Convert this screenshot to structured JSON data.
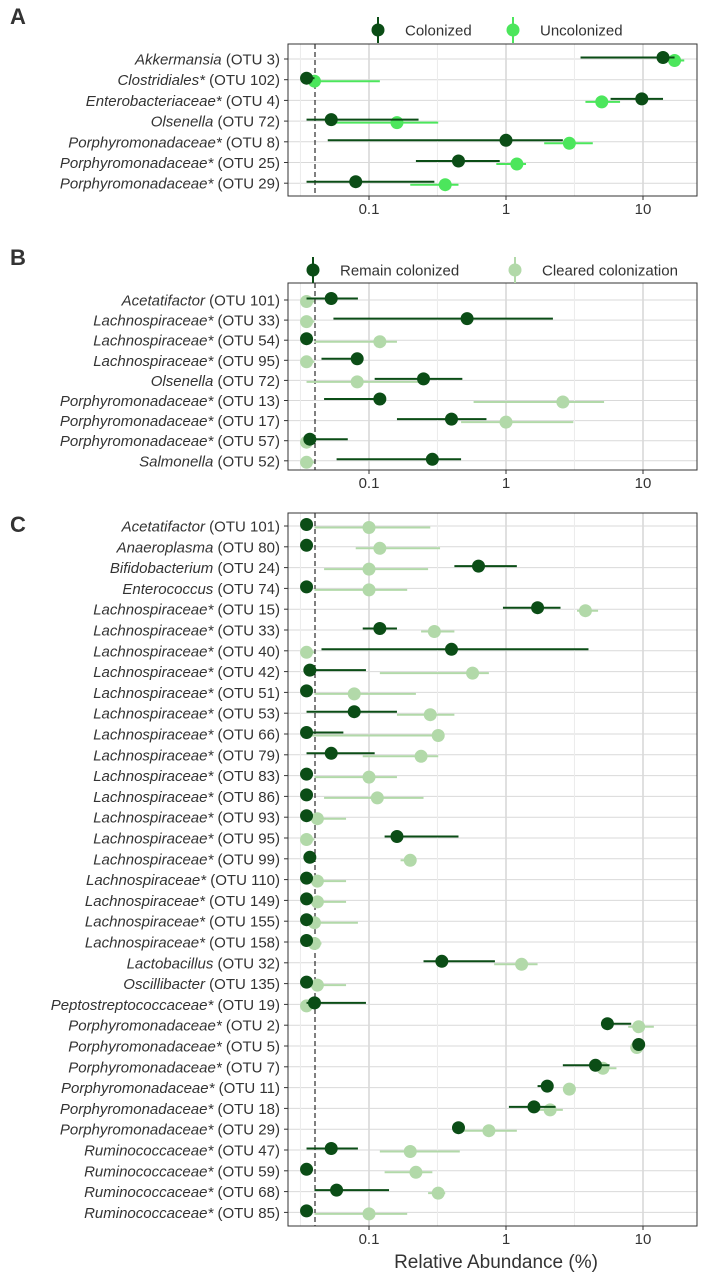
{
  "colors": {
    "dark_green": "#0b4d16",
    "bright_green": "#4ce65c",
    "light_green": "#b2d9a9",
    "grid_major": "#d9d9d9",
    "grid_minor": "#ececec",
    "panel_border": "#333333"
  },
  "x_axis": {
    "label": "Relative Abundance (%)",
    "scale": "log10",
    "ticks": [
      0.1,
      1,
      10
    ],
    "tick_labels": [
      "0.1",
      "1",
      "10"
    ],
    "xlim": [
      0.025,
      25
    ],
    "reference_line": 0.04
  },
  "chart_data": [
    {
      "type": "dot-interval",
      "panel_label": "A",
      "legend": [
        "Colonized",
        "Uncolonized"
      ],
      "legend_colors": [
        "#0b4d16",
        "#4ce65c"
      ],
      "categories": [
        {
          "taxon": "Akkermansia",
          "star": "",
          "otu": "(OTU 3)"
        },
        {
          "taxon": "Clostridiales",
          "star": "*",
          "otu": "(OTU 102)"
        },
        {
          "taxon": "Enterobacteriaceae",
          "star": "*",
          "otu": "(OTU 4)"
        },
        {
          "taxon": "Olsenella",
          "star": "",
          "otu": "(OTU 72)"
        },
        {
          "taxon": "Porphyromonadaceae",
          "star": "*",
          "otu": "(OTU 8)"
        },
        {
          "taxon": "Porphyromonadaceae",
          "star": "*",
          "otu": "(OTU 25)"
        },
        {
          "taxon": "Porphyromonadaceae",
          "star": "*",
          "otu": "(OTU 29)"
        }
      ],
      "series": [
        {
          "name": "Colonized",
          "color": "#0b4d16",
          "values": [
            14,
            0.035,
            9.8,
            0.053,
            1.0,
            0.45,
            0.08
          ],
          "lower": [
            3.5,
            0.035,
            5.8,
            0.035,
            0.05,
            0.22,
            0.035
          ],
          "upper": [
            17,
            0.04,
            14,
            0.23,
            2.6,
            0.9,
            0.3
          ]
        },
        {
          "name": "Uncolonized",
          "color": "#4ce65c",
          "values": [
            17,
            0.04,
            5.0,
            0.16,
            2.9,
            1.2,
            0.36
          ],
          "lower": [
            14,
            0.04,
            3.8,
            0.05,
            1.9,
            0.85,
            0.2
          ],
          "upper": [
            20,
            0.12,
            6.8,
            0.32,
            4.3,
            1.4,
            0.45
          ]
        }
      ]
    },
    {
      "type": "dot-interval",
      "panel_label": "B",
      "legend": [
        "Remain colonized",
        "Cleared colonization"
      ],
      "legend_colors": [
        "#0b4d16",
        "#b2d9a9"
      ],
      "categories": [
        {
          "taxon": "Acetatifactor",
          "star": "",
          "otu": "(OTU 101)"
        },
        {
          "taxon": "Lachnospiraceae",
          "star": "*",
          "otu": "(OTU 33)"
        },
        {
          "taxon": "Lachnospiraceae",
          "star": "*",
          "otu": "(OTU 54)"
        },
        {
          "taxon": "Lachnospiraceae",
          "star": "*",
          "otu": "(OTU 95)"
        },
        {
          "taxon": "Olsenella",
          "star": "",
          "otu": "(OTU 72)"
        },
        {
          "taxon": "Porphyromonadaceae",
          "star": "*",
          "otu": "(OTU 13)"
        },
        {
          "taxon": "Porphyromonadaceae",
          "star": "*",
          "otu": "(OTU 17)"
        },
        {
          "taxon": "Porphyromonadaceae",
          "star": "*",
          "otu": "(OTU 57)"
        },
        {
          "taxon": "Salmonella",
          "star": "",
          "otu": "(OTU 52)"
        }
      ],
      "series": [
        {
          "name": "Remain colonized",
          "color": "#0b4d16",
          "values": [
            0.053,
            0.52,
            0.035,
            0.082,
            0.25,
            0.12,
            0.4,
            0.037,
            0.29
          ],
          "lower": [
            0.035,
            0.055,
            0.035,
            0.045,
            0.11,
            0.047,
            0.16,
            0.035,
            0.058
          ],
          "upper": [
            0.083,
            2.2,
            0.035,
            0.082,
            0.48,
            0.12,
            0.72,
            0.07,
            0.47
          ]
        },
        {
          "name": "Cleared colonization",
          "color": "#b2d9a9",
          "values": [
            0.035,
            0.035,
            0.12,
            0.035,
            0.082,
            2.6,
            1.0,
            0.035,
            0.035
          ],
          "lower": [
            0.035,
            0.035,
            0.04,
            0.035,
            0.035,
            0.58,
            0.47,
            0.035,
            0.035
          ],
          "upper": [
            0.04,
            0.04,
            0.16,
            0.04,
            0.25,
            5.2,
            3.1,
            0.04,
            0.04
          ]
        }
      ]
    },
    {
      "type": "dot-interval",
      "panel_label": "C",
      "legend": [],
      "legend_colors": [],
      "categories": [
        {
          "taxon": "Acetatifactor",
          "star": "",
          "otu": "(OTU 101)"
        },
        {
          "taxon": "Anaeroplasma",
          "star": "",
          "otu": "(OTU 80)"
        },
        {
          "taxon": "Bifidobacterium",
          "star": "",
          "otu": "(OTU 24)"
        },
        {
          "taxon": "Enterococcus",
          "star": "",
          "otu": "(OTU 74)"
        },
        {
          "taxon": "Lachnospiraceae",
          "star": "*",
          "otu": "(OTU 15)"
        },
        {
          "taxon": "Lachnospiraceae",
          "star": "*",
          "otu": "(OTU 33)"
        },
        {
          "taxon": "Lachnospiraceae",
          "star": "*",
          "otu": "(OTU 40)"
        },
        {
          "taxon": "Lachnospiraceae",
          "star": "*",
          "otu": "(OTU 42)"
        },
        {
          "taxon": "Lachnospiraceae",
          "star": "*",
          "otu": "(OTU 51)"
        },
        {
          "taxon": "Lachnospiraceae",
          "star": "*",
          "otu": "(OTU 53)"
        },
        {
          "taxon": "Lachnospiraceae",
          "star": "*",
          "otu": "(OTU 66)"
        },
        {
          "taxon": "Lachnospiraceae",
          "star": "*",
          "otu": "(OTU 79)"
        },
        {
          "taxon": "Lachnospiraceae",
          "star": "*",
          "otu": "(OTU 83)"
        },
        {
          "taxon": "Lachnospiraceae",
          "star": "*",
          "otu": "(OTU 86)"
        },
        {
          "taxon": "Lachnospiraceae",
          "star": "*",
          "otu": "(OTU 93)"
        },
        {
          "taxon": "Lachnospiraceae",
          "star": "*",
          "otu": "(OTU 95)"
        },
        {
          "taxon": "Lachnospiraceae",
          "star": "*",
          "otu": "(OTU 99)"
        },
        {
          "taxon": "Lachnospiraceae",
          "star": "*",
          "otu": "(OTU 110)"
        },
        {
          "taxon": "Lachnospiraceae",
          "star": "*",
          "otu": "(OTU 149)"
        },
        {
          "taxon": "Lachnospiraceae",
          "star": "*",
          "otu": "(OTU 155)"
        },
        {
          "taxon": "Lachnospiraceae",
          "star": "*",
          "otu": "(OTU 158)"
        },
        {
          "taxon": "Lactobacillus",
          "star": "",
          "otu": "(OTU 32)"
        },
        {
          "taxon": "Oscillibacter",
          "star": "",
          "otu": "(OTU 135)"
        },
        {
          "taxon": "Peptostreptococcaceae",
          "star": "*",
          "otu": "(OTU 19)"
        },
        {
          "taxon": "Porphyromonadaceae",
          "star": "*",
          "otu": "(OTU 2)"
        },
        {
          "taxon": "Porphyromonadaceae",
          "star": "*",
          "otu": "(OTU 5)"
        },
        {
          "taxon": "Porphyromonadaceae",
          "star": "*",
          "otu": "(OTU 7)"
        },
        {
          "taxon": "Porphyromonadaceae",
          "star": "*",
          "otu": "(OTU 11)"
        },
        {
          "taxon": "Porphyromonadaceae",
          "star": "*",
          "otu": "(OTU 18)"
        },
        {
          "taxon": "Porphyromonadaceae",
          "star": "*",
          "otu": "(OTU 29)"
        },
        {
          "taxon": "Ruminococcaceae",
          "star": "*",
          "otu": "(OTU 47)"
        },
        {
          "taxon": "Ruminococcaceae",
          "star": "*",
          "otu": "(OTU 59)"
        },
        {
          "taxon": "Ruminococcaceae",
          "star": "*",
          "otu": "(OTU 68)"
        },
        {
          "taxon": "Ruminococcaceae",
          "star": "*",
          "otu": "(OTU 85)"
        }
      ],
      "series": [
        {
          "name": "Remain colonized",
          "color": "#0b4d16",
          "values": [
            0.035,
            0.035,
            0.63,
            0.035,
            1.7,
            0.12,
            0.4,
            0.037,
            0.035,
            0.078,
            0.035,
            0.053,
            0.035,
            0.035,
            0.035,
            0.16,
            0.037,
            0.035,
            0.035,
            0.035,
            0.035,
            0.34,
            0.035,
            0.04,
            5.5,
            9.3,
            4.5,
            2.0,
            1.6,
            0.45,
            0.053,
            0.035,
            0.058,
            0.035
          ],
          "lower": [
            0.035,
            0.035,
            0.42,
            0.035,
            0.95,
            0.09,
            0.045,
            0.035,
            0.035,
            0.035,
            0.035,
            0.035,
            0.035,
            0.035,
            0.035,
            0.13,
            0.035,
            0.035,
            0.035,
            0.035,
            0.035,
            0.25,
            0.035,
            0.035,
            5.5,
            9.3,
            2.6,
            1.7,
            1.05,
            0.45,
            0.035,
            0.035,
            0.04,
            0.035
          ],
          "upper": [
            0.035,
            0.035,
            1.2,
            0.035,
            2.5,
            0.16,
            4.0,
            0.095,
            0.035,
            0.16,
            0.065,
            0.11,
            0.035,
            0.035,
            0.035,
            0.45,
            0.037,
            0.035,
            0.035,
            0.035,
            0.035,
            0.83,
            0.035,
            0.095,
            8.2,
            9.3,
            5.7,
            2.1,
            2.3,
            0.45,
            0.083,
            0.035,
            0.14,
            0.035
          ]
        },
        {
          "name": "Cleared colonization",
          "color": "#b2d9a9",
          "values": [
            0.1,
            0.12,
            0.1,
            0.1,
            3.8,
            0.3,
            0.035,
            0.57,
            0.078,
            0.28,
            0.32,
            0.24,
            0.1,
            0.115,
            0.042,
            0.035,
            0.2,
            0.042,
            0.042,
            0.04,
            0.04,
            1.3,
            0.042,
            0.035,
            9.3,
            9.0,
            5.1,
            2.9,
            2.1,
            0.75,
            0.2,
            0.22,
            0.32,
            0.1
          ],
          "lower": [
            0.04,
            0.08,
            0.047,
            0.04,
            3.3,
            0.24,
            0.035,
            0.12,
            0.04,
            0.16,
            0.035,
            0.09,
            0.04,
            0.047,
            0.035,
            0.035,
            0.17,
            0.035,
            0.035,
            0.035,
            0.035,
            0.82,
            0.035,
            0.035,
            7.8,
            9.0,
            4.4,
            2.9,
            1.6,
            0.47,
            0.12,
            0.13,
            0.27,
            0.04
          ],
          "upper": [
            0.28,
            0.33,
            0.27,
            0.19,
            4.7,
            0.42,
            0.04,
            0.75,
            0.22,
            0.42,
            0.33,
            0.32,
            0.16,
            0.25,
            0.068,
            0.04,
            0.22,
            0.068,
            0.068,
            0.083,
            0.045,
            1.7,
            0.068,
            0.04,
            12,
            9.0,
            6.4,
            2.9,
            2.6,
            1.2,
            0.46,
            0.29,
            0.36,
            0.19
          ]
        }
      ]
    }
  ]
}
